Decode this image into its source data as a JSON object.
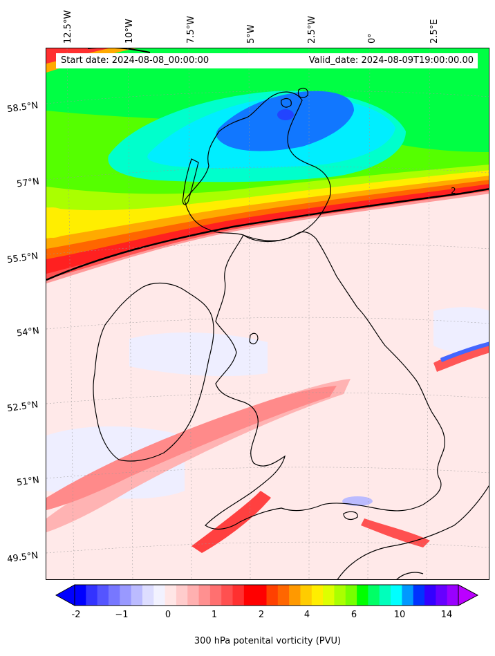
{
  "map": {
    "start_date": "Start date: 2024-08-08_00:00:00",
    "valid_date": "Valid_date: 2024-08-09T19:00:00.00",
    "contour_label": "2",
    "lon_labels": [
      "12.5°W",
      "10°W",
      "7.5°W",
      "5°W",
      "2.5°W",
      "0°",
      "2.5°E"
    ],
    "lat_labels": [
      "58.5°N",
      "57°N",
      "55.5°N",
      "54°N",
      "52.5°N",
      "51°N",
      "49.5°N"
    ],
    "colors": {
      "coastline": "#000000",
      "contour_2pvu": "#000000",
      "background_low_pv": "#ffe6e6"
    }
  },
  "colorbar": {
    "title": "300 hPa potenital vorticity (PVU)",
    "tick_labels": [
      "-2",
      "−1",
      "0",
      "1",
      "2",
      "4",
      "6",
      "10",
      "14"
    ],
    "colors": [
      "#0000ff",
      "#3333ff",
      "#5555ff",
      "#7777ff",
      "#9999ff",
      "#bbbbff",
      "#ddddff",
      "#f2f2ff",
      "#ffe6e6",
      "#ffcccc",
      "#ffb0b0",
      "#ff9090",
      "#ff7070",
      "#ff5050",
      "#ff3030",
      "#ff0000",
      "#ff0000",
      "#ff4000",
      "#ff6600",
      "#ff9900",
      "#ffcc00",
      "#ffee00",
      "#ddff00",
      "#aaff00",
      "#77ff00",
      "#00ff00",
      "#00ff66",
      "#00ffbb",
      "#00ffff",
      "#0099ff",
      "#0033ff",
      "#3300ff",
      "#6600ff",
      "#9900ff"
    ],
    "extend_min_color": "#0000ff",
    "extend_max_color": "#bb00ff"
  }
}
